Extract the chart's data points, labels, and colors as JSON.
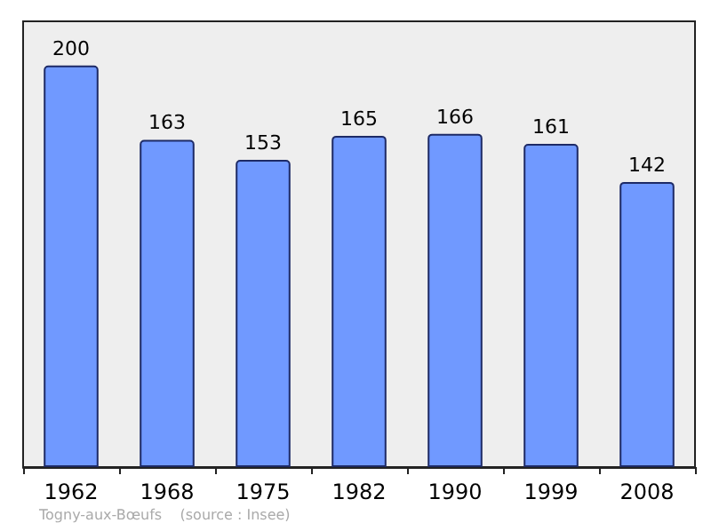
{
  "chart_data": {
    "type": "bar",
    "categories": [
      "1962",
      "1968",
      "1975",
      "1982",
      "1990",
      "1999",
      "2008"
    ],
    "values": [
      200,
      163,
      153,
      165,
      166,
      161,
      142
    ],
    "color": "#7099ff",
    "ylim": [
      0,
      222
    ],
    "data_labels": true,
    "annotations": [
      "Togny-aux-Bœufs    (source : Insee)"
    ]
  }
}
